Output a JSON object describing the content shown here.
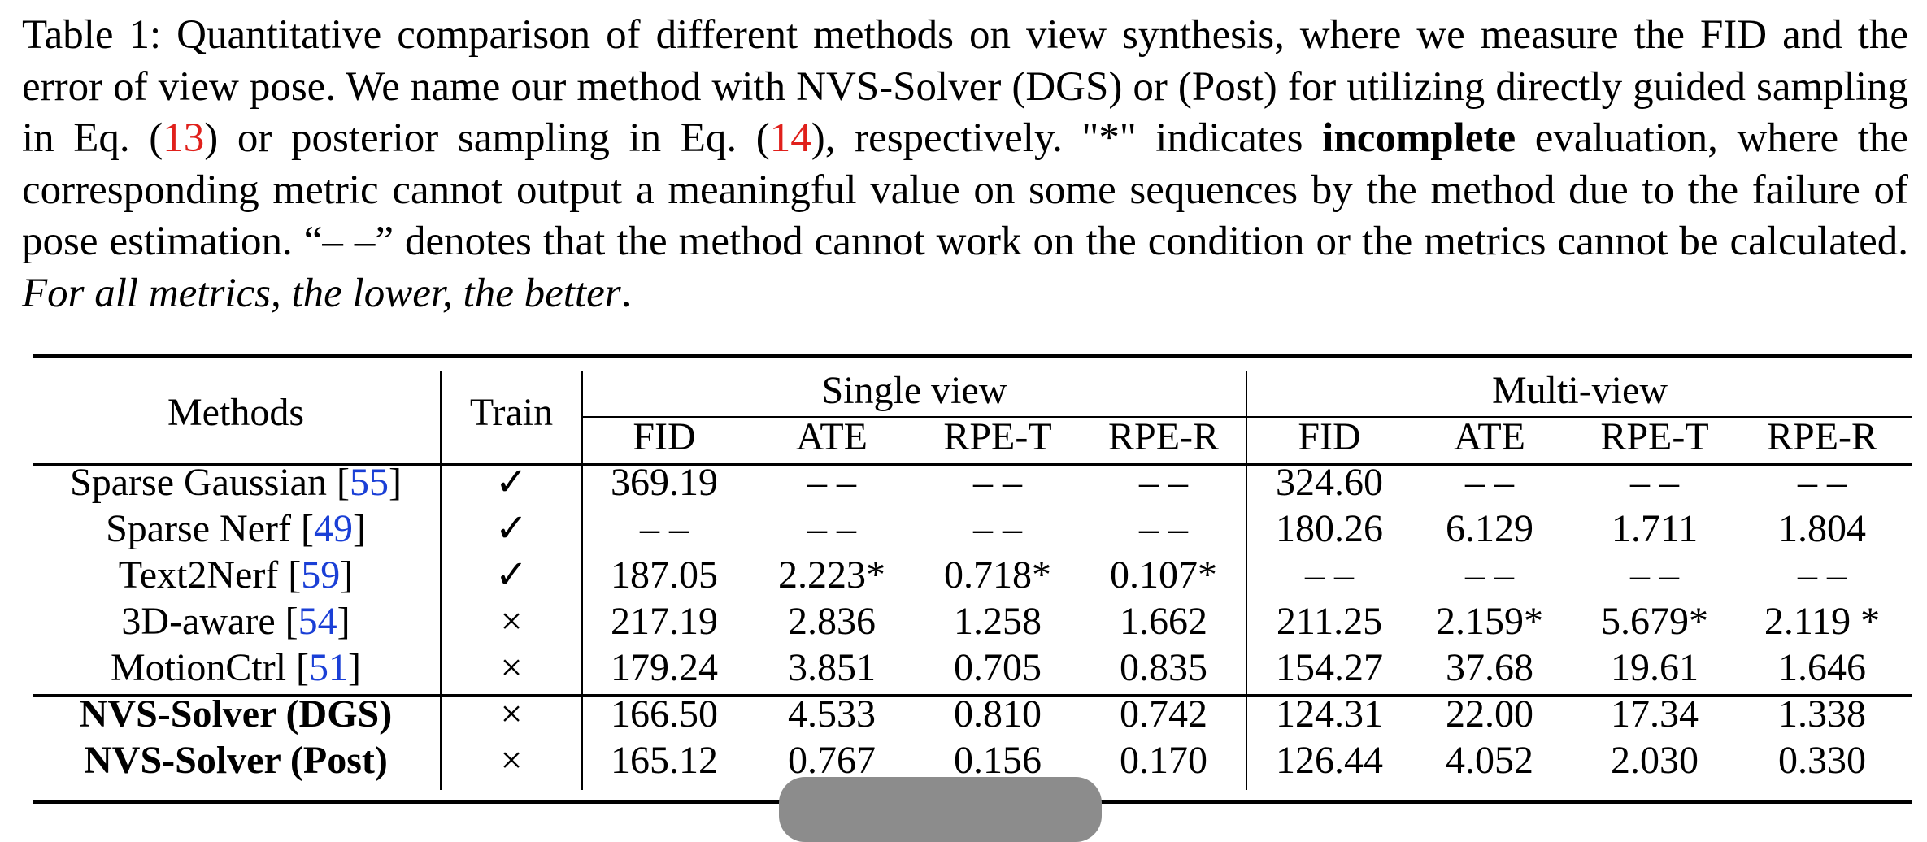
{
  "caption": {
    "p1": "Table 1: Quantitative comparison of different methods on view synthesis, where we measure the FID and the error of view pose. We name our method with NVS-Solver (DGS) or (Post) for utilizing directly guided sampling in Eq. (",
    "ref1": "13",
    "p2": ") or posterior sampling in Eq. (",
    "ref2": "14",
    "p3": "), respectively. \"*\" indicates ",
    "bold": "incomplete",
    "p4": " evaluation, where the corresponding metric cannot output a meaningful value on some sequences by the method due to the failure of pose estimation. “– –” denotes that the method cannot work on the condition or the metrics cannot be calculated. ",
    "italic": "For all metrics, the lower, the better",
    "end": "."
  },
  "table": {
    "header": {
      "methods": "Methods",
      "train": "Train",
      "group1": "Single view",
      "group2": "Multi-view",
      "cols": [
        "FID",
        "ATE",
        "RPE-T",
        "RPE-R",
        "FID",
        "ATE",
        "RPE-T",
        "RPE-R"
      ]
    },
    "rows": [
      {
        "name": "Sparse Gaussian [",
        "ref": "55",
        "close": "]",
        "train": "✓",
        "cells": [
          "369.19",
          "– –",
          "– –",
          "– –",
          "324.60",
          "– –",
          "– –",
          "– –"
        ]
      },
      {
        "name": "Sparse Nerf [",
        "ref": "49",
        "close": "]",
        "train": "✓",
        "cells": [
          "– –",
          "– –",
          "– –",
          "– –",
          "180.26",
          "6.129",
          "1.711",
          "1.804"
        ]
      },
      {
        "name": "Text2Nerf [",
        "ref": "59",
        "close": "]",
        "train": "✓",
        "cells": [
          "187.05",
          "2.223*",
          "0.718*",
          "0.107*",
          "– –",
          "– –",
          "– –",
          "– –"
        ]
      },
      {
        "name": "3D-aware [",
        "ref": "54",
        "close": "]",
        "train": "×",
        "cells": [
          "217.19",
          "2.836",
          "1.258",
          "1.662",
          "211.25",
          "2.159*",
          "5.679*",
          "2.119 *"
        ]
      },
      {
        "name": "MotionCtrl [",
        "ref": "51",
        "close": "]",
        "train": "×",
        "cells": [
          "179.24",
          "3.851",
          "0.705",
          "0.835",
          "154.27",
          "37.68",
          "19.61",
          "1.646"
        ]
      },
      {
        "name": "NVS-Solver (DGS)",
        "ref": "",
        "close": "",
        "train": "×",
        "cells": [
          "166.50",
          "4.533",
          "0.810",
          "0.742",
          "124.31",
          "22.00",
          "17.34",
          "1.338"
        ]
      },
      {
        "name": "NVS-Solver (Post)",
        "ref": "",
        "close": "",
        "train": "×",
        "cells": [
          "165.12",
          "0.767",
          "0.156",
          "0.170",
          "126.44",
          "4.052",
          "2.030",
          "0.330"
        ]
      }
    ]
  }
}
